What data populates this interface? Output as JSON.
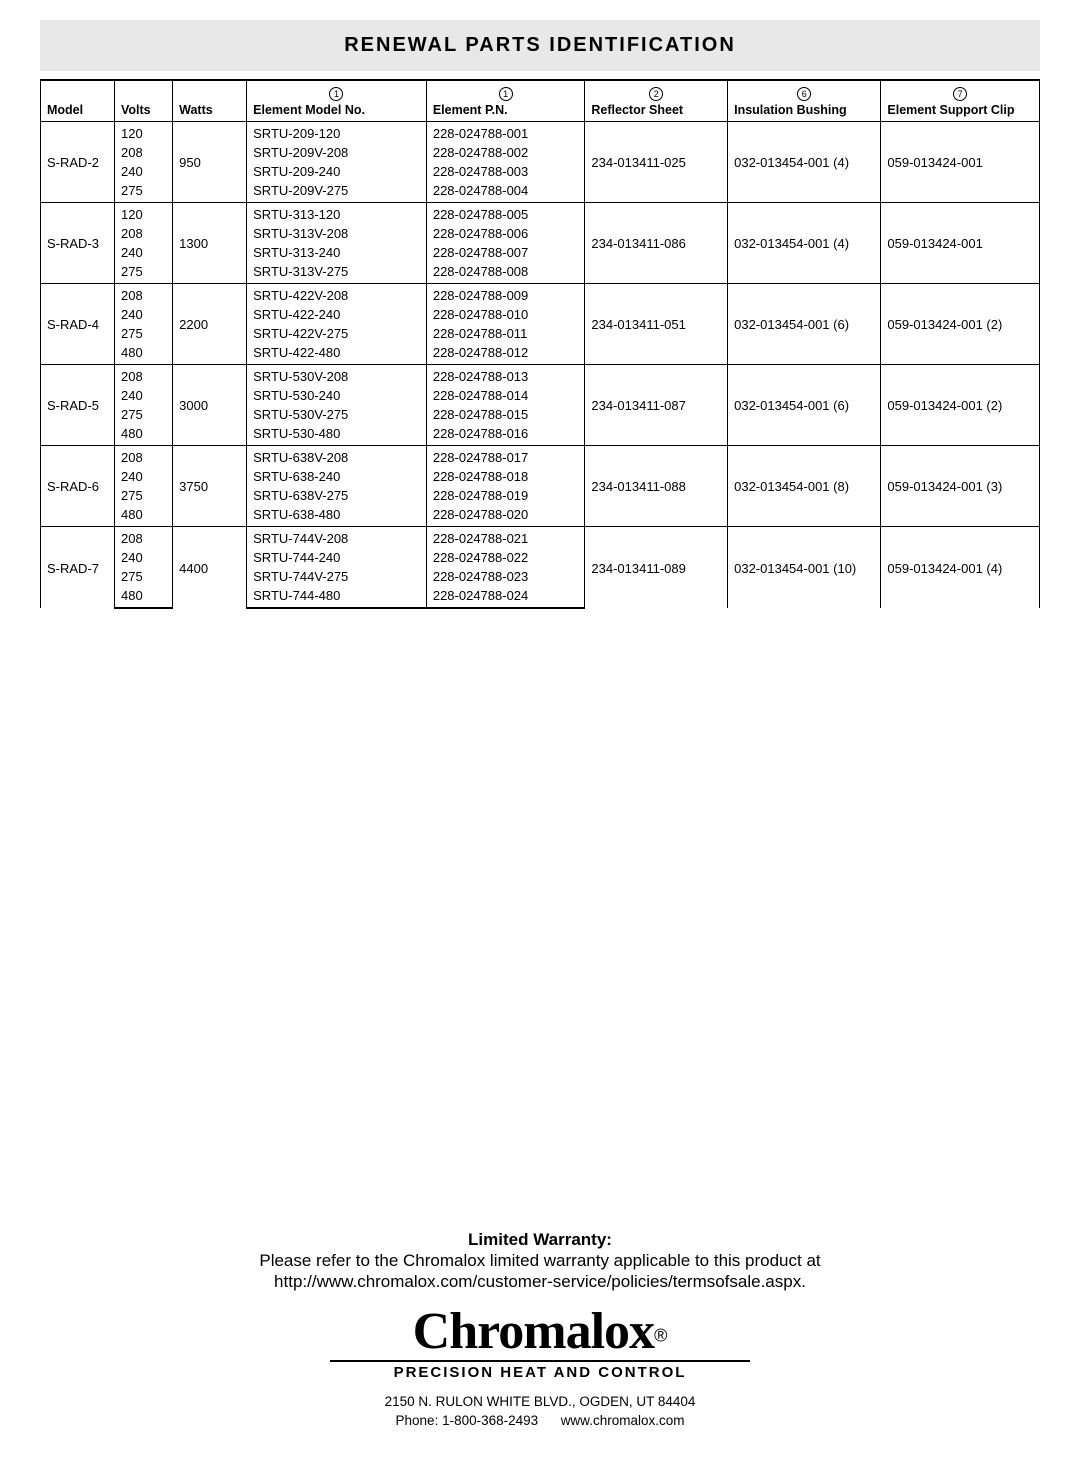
{
  "title": "RENEWAL PARTS IDENTIFICATION",
  "columns": {
    "model": "Model",
    "volts": "Volts",
    "watts": "Watts",
    "elementModelNo": "Element Model No.",
    "elementPN": "Element P.N.",
    "reflectorSheet": "Reflector Sheet",
    "insulationBushing": "Insulation Bushing",
    "elementSupportClip": "Element Support Clip"
  },
  "icons": {
    "elementModelNo": "1",
    "elementPN": "1",
    "reflectorSheet": "2",
    "insulationBushing": "6",
    "elementSupportClip": "7"
  },
  "rows": [
    {
      "model": "S-RAD-2",
      "watts": "950",
      "reflector": "234-013411-025",
      "bushing": "032-013454-001 (4)",
      "clip": "059-013424-001",
      "variants": [
        {
          "volts": "120",
          "elModel": "SRTU-209-120",
          "elPN": "228-024788-001"
        },
        {
          "volts": "208",
          "elModel": "SRTU-209V-208",
          "elPN": "228-024788-002"
        },
        {
          "volts": "240",
          "elModel": "SRTU-209-240",
          "elPN": "228-024788-003"
        },
        {
          "volts": "275",
          "elModel": "SRTU-209V-275",
          "elPN": "228-024788-004"
        }
      ]
    },
    {
      "model": "S-RAD-3",
      "watts": "1300",
      "reflector": "234-013411-086",
      "bushing": "032-013454-001 (4)",
      "clip": "059-013424-001",
      "variants": [
        {
          "volts": "120",
          "elModel": "SRTU-313-120",
          "elPN": "228-024788-005"
        },
        {
          "volts": "208",
          "elModel": "SRTU-313V-208",
          "elPN": "228-024788-006"
        },
        {
          "volts": "240",
          "elModel": "SRTU-313-240",
          "elPN": "228-024788-007"
        },
        {
          "volts": "275",
          "elModel": "SRTU-313V-275",
          "elPN": "228-024788-008"
        }
      ]
    },
    {
      "model": "S-RAD-4",
      "watts": "2200",
      "reflector": "234-013411-051",
      "bushing": "032-013454-001 (6)",
      "clip": "059-013424-001 (2)",
      "variants": [
        {
          "volts": "208",
          "elModel": "SRTU-422V-208",
          "elPN": "228-024788-009"
        },
        {
          "volts": "240",
          "elModel": "SRTU-422-240",
          "elPN": "228-024788-010"
        },
        {
          "volts": "275",
          "elModel": "SRTU-422V-275",
          "elPN": "228-024788-011"
        },
        {
          "volts": "480",
          "elModel": "SRTU-422-480",
          "elPN": "228-024788-012"
        }
      ]
    },
    {
      "model": "S-RAD-5",
      "watts": "3000",
      "reflector": "234-013411-087",
      "bushing": "032-013454-001 (6)",
      "clip": "059-013424-001 (2)",
      "variants": [
        {
          "volts": "208",
          "elModel": "SRTU-530V-208",
          "elPN": "228-024788-013"
        },
        {
          "volts": "240",
          "elModel": "SRTU-530-240",
          "elPN": "228-024788-014"
        },
        {
          "volts": "275",
          "elModel": "SRTU-530V-275",
          "elPN": "228-024788-015"
        },
        {
          "volts": "480",
          "elModel": "SRTU-530-480",
          "elPN": "228-024788-016"
        }
      ]
    },
    {
      "model": "S-RAD-6",
      "watts": "3750",
      "reflector": "234-013411-088",
      "bushing": "032-013454-001 (8)",
      "clip": "059-013424-001 (3)",
      "variants": [
        {
          "volts": "208",
          "elModel": "SRTU-638V-208",
          "elPN": "228-024788-017"
        },
        {
          "volts": "240",
          "elModel": "SRTU-638-240",
          "elPN": "228-024788-018"
        },
        {
          "volts": "275",
          "elModel": "SRTU-638V-275",
          "elPN": "228-024788-019"
        },
        {
          "volts": "480",
          "elModel": "SRTU-638-480",
          "elPN": "228-024788-020"
        }
      ]
    },
    {
      "model": "S-RAD-7",
      "watts": "4400",
      "reflector": "234-013411-089",
      "bushing": "032-013454-001 (10)",
      "clip": "059-013424-001 (4)",
      "variants": [
        {
          "volts": "208",
          "elModel": "SRTU-744V-208",
          "elPN": "228-024788-021"
        },
        {
          "volts": "240",
          "elModel": "SRTU-744-240",
          "elPN": "228-024788-022"
        },
        {
          "volts": "275",
          "elModel": "SRTU-744V-275",
          "elPN": "228-024788-023"
        },
        {
          "volts": "480",
          "elModel": "SRTU-744-480",
          "elPN": "228-024788-024"
        }
      ]
    }
  ],
  "warranty": {
    "title": "Limited Warranty:",
    "line1": "Please refer to the Chromalox limited warranty applicable to this product at",
    "line2": "http://www.chromalox.com/customer-service/policies/termsofsale.aspx."
  },
  "logo": {
    "name": "Chromalox",
    "reg": "®",
    "tag": "PRECISION HEAT AND CONTROL"
  },
  "address": {
    "line1": "2150 N. RULON WHITE BLVD., OGDEN, UT 84404",
    "phoneLabel": "Phone:",
    "phone": "1-800-368-2493",
    "web": "www.chromalox.com"
  }
}
